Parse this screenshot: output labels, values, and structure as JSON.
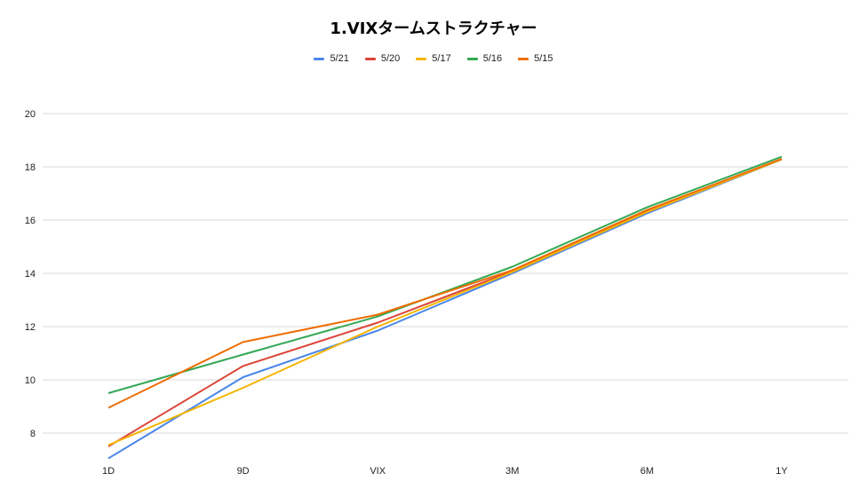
{
  "chart_data": {
    "type": "line",
    "title": "1.VIXタームストラクチャー",
    "xlabel": "",
    "ylabel": "",
    "categories": [
      "1D",
      "9D",
      "VIX",
      "3M",
      "6M",
      "1Y"
    ],
    "ylim": [
      7,
      21
    ],
    "yticks": [
      8,
      10,
      12,
      14,
      16,
      18,
      20
    ],
    "grid": true,
    "legend_position": "top",
    "series": [
      {
        "name": "5/21",
        "color": "#4a86e8",
        "values": [
          7.05,
          10.1,
          11.85,
          14.0,
          16.25,
          18.28
        ]
      },
      {
        "name": "5/20",
        "color": "#db4437",
        "values": [
          7.5,
          10.52,
          12.15,
          14.08,
          16.35,
          18.3
        ]
      },
      {
        "name": "5/17",
        "color": "#f4b400",
        "values": [
          7.55,
          9.7,
          12.0,
          14.05,
          16.3,
          18.28
        ]
      },
      {
        "name": "5/16",
        "color": "#34a853",
        "values": [
          9.5,
          10.95,
          12.38,
          14.25,
          16.48,
          18.38
        ]
      },
      {
        "name": "5/15",
        "color": "#ef6c00",
        "values": [
          8.95,
          11.42,
          12.45,
          14.12,
          16.38,
          18.3
        ]
      }
    ]
  }
}
